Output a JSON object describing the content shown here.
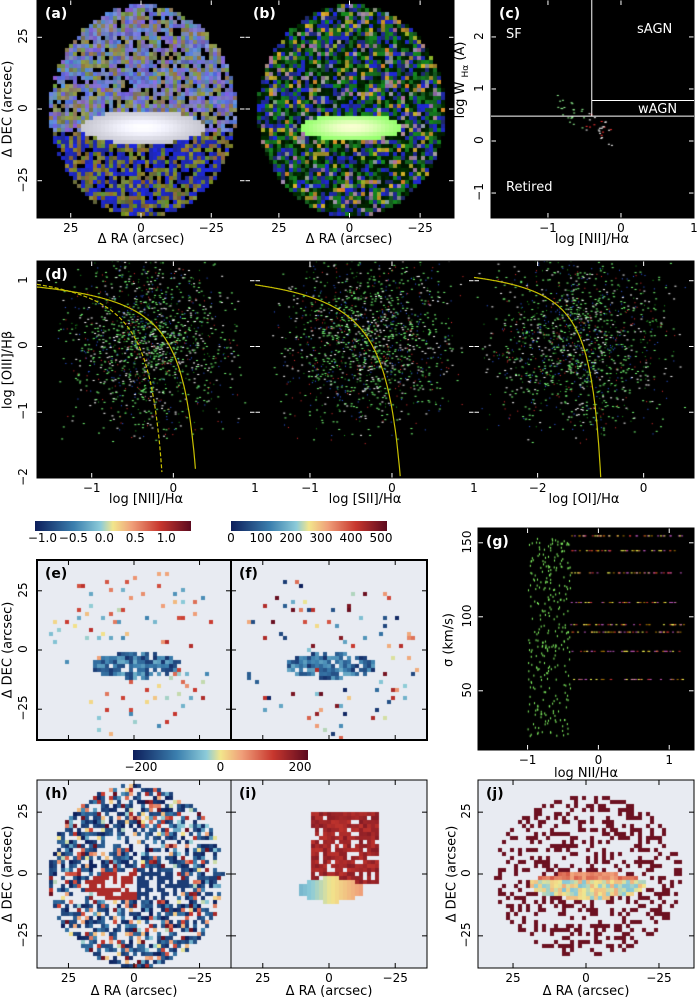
{
  "colors": {
    "dark_bg": "#000000",
    "map_bg": "#e8ebf2",
    "kewley_curve": "#c8c000",
    "whan_lines": "#ffffff"
  },
  "panel_a": {
    "label": "(a)",
    "xlabel": "Δ RA (arcsec)",
    "ylabel": "Δ DEC (arcsec)",
    "xticks": [
      "25",
      "0",
      "−25"
    ],
    "yticks": [
      "25",
      "0",
      "−25"
    ]
  },
  "panel_b": {
    "label": "(b)",
    "xlabel": "Δ RA (arcsec)",
    "xticks": [
      "25",
      "0",
      "−25"
    ]
  },
  "chart_data": [
    {
      "panel": "c",
      "type": "scatter",
      "title": "",
      "xlabel": "log [NII]/Hα",
      "ylabel": "log W Hα (Å)",
      "xlim": [
        -1.78,
        1
      ],
      "ylim": [
        -1.48,
        2.71
      ],
      "xticks": [
        "−1",
        "0",
        "1"
      ],
      "yticks": [
        "−1",
        "0",
        "1",
        "2"
      ],
      "regions": [
        "SF",
        "sAGN",
        "wAGN",
        "Retired"
      ],
      "divisions": {
        "sf_agn_x": -0.4,
        "retired_y": 0.477,
        "sagn_wagn_y": 0.778
      }
    },
    {
      "panel": "d",
      "type": "scatter",
      "ylabel": "log [OIII]/Hβ",
      "ylim": [
        -2,
        1.3
      ],
      "yticks": [
        "−2",
        "−1",
        "0",
        "1"
      ],
      "subplots": [
        {
          "xlabel": "log [NII]/Hα",
          "xlim": [
            -1.67,
            1
          ],
          "xticks": [
            "−1",
            "0",
            "1"
          ]
        },
        {
          "xlabel": "log [SII]/Hα",
          "xlim": [
            -1.67,
            1
          ],
          "xticks": [
            "−1",
            "0",
            "1"
          ]
        },
        {
          "xlabel": "log [OI]/Hα",
          "xlim": [
            -3.2,
            0.95
          ],
          "xticks": [
            "−2",
            "0"
          ]
        }
      ]
    },
    {
      "panel": "g",
      "type": "scatter",
      "xlabel": "log NII/Hα",
      "ylabel": "σ (km/s)",
      "xlim": [
        -1.7,
        1.35
      ],
      "ylim": [
        10,
        160
      ],
      "xticks": [
        "−1",
        "0",
        "1"
      ],
      "yticks": [
        "50",
        "100",
        "150"
      ]
    }
  ],
  "panel_c": {
    "label": "(c)",
    "xlabel": "log [NII]/Hα",
    "ylabel_main": "log W",
    "ylabel_sub": "Hα",
    "ylabel_unit": "(Å)",
    "regions": {
      "sf": "SF",
      "sagn": "sAGN",
      "wagn": "wAGN",
      "retired": "Retired"
    }
  },
  "panel_d": {
    "label": "(d)",
    "ylabel": "log [OIII]/Hβ",
    "xlabels": [
      "log [NII]/Hα",
      "log [SII]/Hα",
      "log [OI]/Hα"
    ]
  },
  "panel_e": {
    "label": "(e)",
    "ylabel": "Δ DEC (arcsec)",
    "colorbar_ticks": [
      "−1.0",
      "−0.5",
      "0.0",
      "0.5",
      "1.0"
    ],
    "yticks": [
      "25",
      "0",
      "−25"
    ]
  },
  "panel_f": {
    "label": "(f)",
    "colorbar_ticks": [
      "0",
      "100",
      "200",
      "300",
      "400",
      "500"
    ]
  },
  "panel_g": {
    "label": "(g)",
    "xlabel": "log NII/Hα",
    "ylabel": "σ (km/s)"
  },
  "panel_hi_colorbar": {
    "ticks": [
      "−200",
      "0",
      "200"
    ]
  },
  "panel_h": {
    "label": "(h)",
    "xlabel": "Δ RA (arcsec)",
    "ylabel": "Δ DEC (arcsec)"
  },
  "panel_i": {
    "label": "(i)",
    "xlabel": "Δ RA (arcsec)"
  },
  "panel_j": {
    "label": "(j)",
    "xlabel": "Δ RA (arcsec)",
    "ylabel": "Δ DEC (arcsec)"
  }
}
